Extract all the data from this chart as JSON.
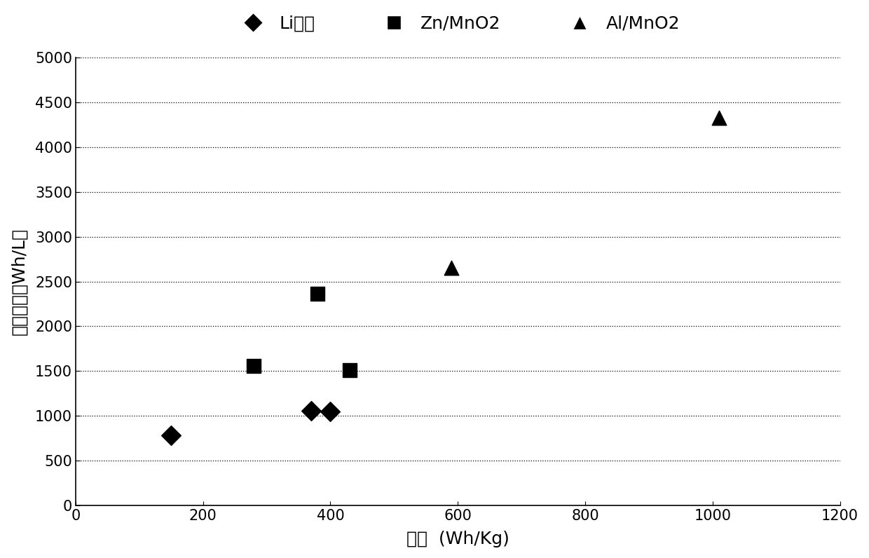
{
  "li_ion": {
    "x": [
      150,
      370,
      400
    ],
    "y": [
      780,
      1060,
      1050
    ],
    "label": "Li离子",
    "marker": "D",
    "color": "black",
    "markersize": 200
  },
  "zn_mno2": {
    "x": [
      280,
      380,
      430
    ],
    "y": [
      1560,
      2360,
      1510
    ],
    "label": "Zn/MnO2",
    "marker": "s",
    "color": "black",
    "markersize": 200
  },
  "al_mno2": {
    "x": [
      590,
      1010
    ],
    "y": [
      2650,
      4330
    ],
    "label": "Al/MnO2",
    "marker": "^",
    "color": "black",
    "markersize": 220
  },
  "xlabel": "比能  (Wh/Kg)",
  "ylabel": "能量密度（Wh/L）",
  "xlim": [
    0,
    1200
  ],
  "ylim": [
    0,
    5000
  ],
  "xticks": [
    0,
    200,
    400,
    600,
    800,
    1000,
    1200
  ],
  "yticks": [
    0,
    500,
    1000,
    1500,
    2000,
    2500,
    3000,
    3500,
    4000,
    4500,
    5000
  ],
  "grid_yticks": [
    500,
    1000,
    1500,
    2000,
    2500,
    3000,
    3500,
    4000,
    4500,
    5000
  ],
  "background_color": "white",
  "legend_fontsize": 18,
  "axis_label_fontsize": 18,
  "tick_fontsize": 15
}
